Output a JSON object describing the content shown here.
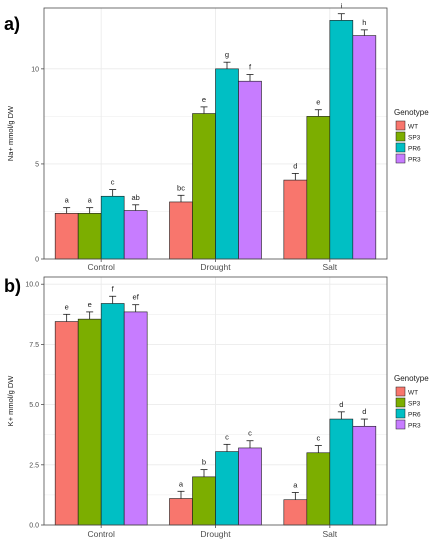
{
  "colors": {
    "panel_bg": "#ffffff",
    "grid": "#ebebeb",
    "border": "#4d4d4d",
    "bar_outline": "#1a1a1a",
    "WT": "#F8766D",
    "SP3": "#7CAE00",
    "PR6": "#00BFC4",
    "PR3": "#C77CFF"
  },
  "legend": {
    "title": "Genotype",
    "entries": [
      "WT",
      "SP3",
      "PR6",
      "PR3"
    ]
  },
  "chart_data": [
    {
      "type": "bar",
      "panel_label": "a)",
      "ylabel": "Na+ mmol/g DW",
      "xlabel": "",
      "categories": [
        "Control",
        "Drought",
        "Salt"
      ],
      "ylim": [
        0,
        13.2
      ],
      "yticks": [
        0,
        5,
        10
      ],
      "ytick_labels": [
        "0",
        "5",
        "10"
      ],
      "grid": true,
      "legend_position": "right",
      "series": [
        {
          "name": "WT",
          "values": [
            2.4,
            3.0,
            4.15
          ],
          "errors": [
            0.3,
            0.35,
            0.35
          ],
          "labels": [
            "a",
            "bc",
            "d"
          ]
        },
        {
          "name": "SP3",
          "values": [
            2.4,
            7.65,
            7.5
          ],
          "errors": [
            0.3,
            0.35,
            0.35
          ],
          "labels": [
            "a",
            "e",
            "e"
          ]
        },
        {
          "name": "PR6",
          "values": [
            3.3,
            10.0,
            12.55
          ],
          "errors": [
            0.35,
            0.35,
            0.35
          ],
          "labels": [
            "c",
            "g",
            "i"
          ]
        },
        {
          "name": "PR3",
          "values": [
            2.55,
            9.35,
            11.75
          ],
          "errors": [
            0.3,
            0.35,
            0.3
          ],
          "labels": [
            "ab",
            "f",
            "h"
          ]
        }
      ]
    },
    {
      "type": "bar",
      "panel_label": "b)",
      "ylabel": "K+ mmol/g DW",
      "xlabel": "",
      "categories": [
        "Control",
        "Drought",
        "Salt"
      ],
      "ylim": [
        0,
        10.3
      ],
      "yticks": [
        0.0,
        2.5,
        5.0,
        7.5,
        10.0
      ],
      "ytick_labels": [
        "0.0",
        "2.5",
        "5.0",
        "7.5",
        "10.0"
      ],
      "grid": true,
      "legend_position": "right",
      "series": [
        {
          "name": "WT",
          "values": [
            8.45,
            1.1,
            1.05
          ],
          "errors": [
            0.3,
            0.3,
            0.3
          ],
          "labels": [
            "e",
            "a",
            "a"
          ]
        },
        {
          "name": "SP3",
          "values": [
            8.55,
            2.0,
            3.0
          ],
          "errors": [
            0.3,
            0.3,
            0.3
          ],
          "labels": [
            "e",
            "b",
            "c"
          ]
        },
        {
          "name": "PR6",
          "values": [
            9.2,
            3.05,
            4.4
          ],
          "errors": [
            0.3,
            0.3,
            0.3
          ],
          "labels": [
            "f",
            "c",
            "d"
          ]
        },
        {
          "name": "PR3",
          "values": [
            8.85,
            3.2,
            4.1
          ],
          "errors": [
            0.3,
            0.3,
            0.3
          ],
          "labels": [
            "ef",
            "c",
            "d"
          ]
        }
      ]
    }
  ]
}
